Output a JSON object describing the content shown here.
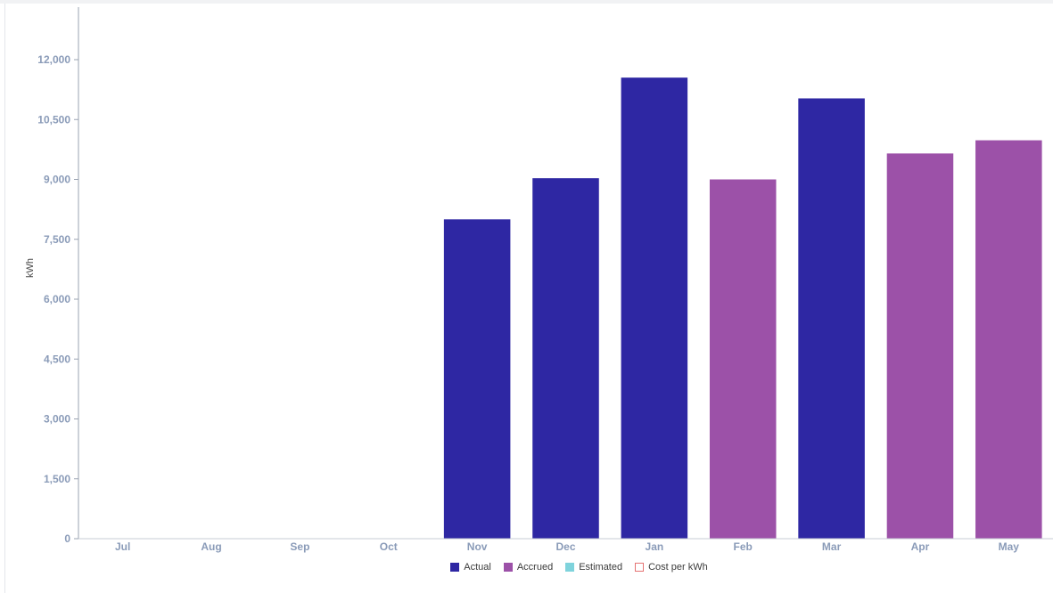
{
  "chart_data": {
    "type": "bar",
    "categories": [
      "Jul",
      "Aug",
      "Sep",
      "Oct",
      "Nov",
      "Dec",
      "Jan",
      "Feb",
      "Mar",
      "Apr",
      "May"
    ],
    "values": [
      0,
      0,
      0,
      0,
      8000,
      9030,
      11550,
      9000,
      11030,
      9650,
      9980
    ],
    "bar_type": [
      "Actual",
      "Actual",
      "Actual",
      "Actual",
      "Actual",
      "Actual",
      "Actual",
      "Accrued",
      "Actual",
      "Accrued",
      "Accrued"
    ],
    "ylabel": "kWh",
    "ylim": [
      0,
      13000
    ],
    "yticks": [
      0,
      1500,
      3000,
      4500,
      6000,
      7500,
      9000,
      10500,
      12000
    ],
    "ytick_labels": [
      "0",
      "1,500",
      "3,000",
      "4,500",
      "6,000",
      "7,500",
      "9,000",
      "10,500",
      "12,000"
    ],
    "grid": false,
    "legend_position": "bottom",
    "legend": [
      {
        "label": "Actual",
        "color": "#2e27a3",
        "style": "filled"
      },
      {
        "label": "Accrued",
        "color": "#9c51a8",
        "style": "filled"
      },
      {
        "label": "Estimated",
        "color": "#7fd3dc",
        "style": "filled"
      },
      {
        "label": "Cost per kWh",
        "color": "#e57373",
        "style": "outline"
      }
    ]
  }
}
